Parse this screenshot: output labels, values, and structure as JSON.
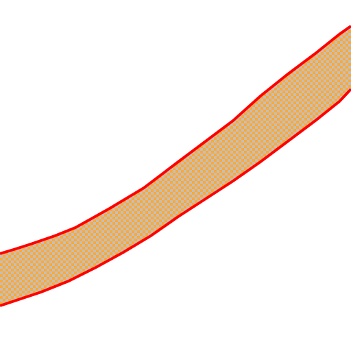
{
  "canvas": {
    "background": "#ffffff"
  },
  "band": {
    "fill_pattern": "checkerboard",
    "pattern_colors": [
      "#ffa833",
      "#c0c0c0"
    ],
    "outline_color": "#ff0000"
  }
}
